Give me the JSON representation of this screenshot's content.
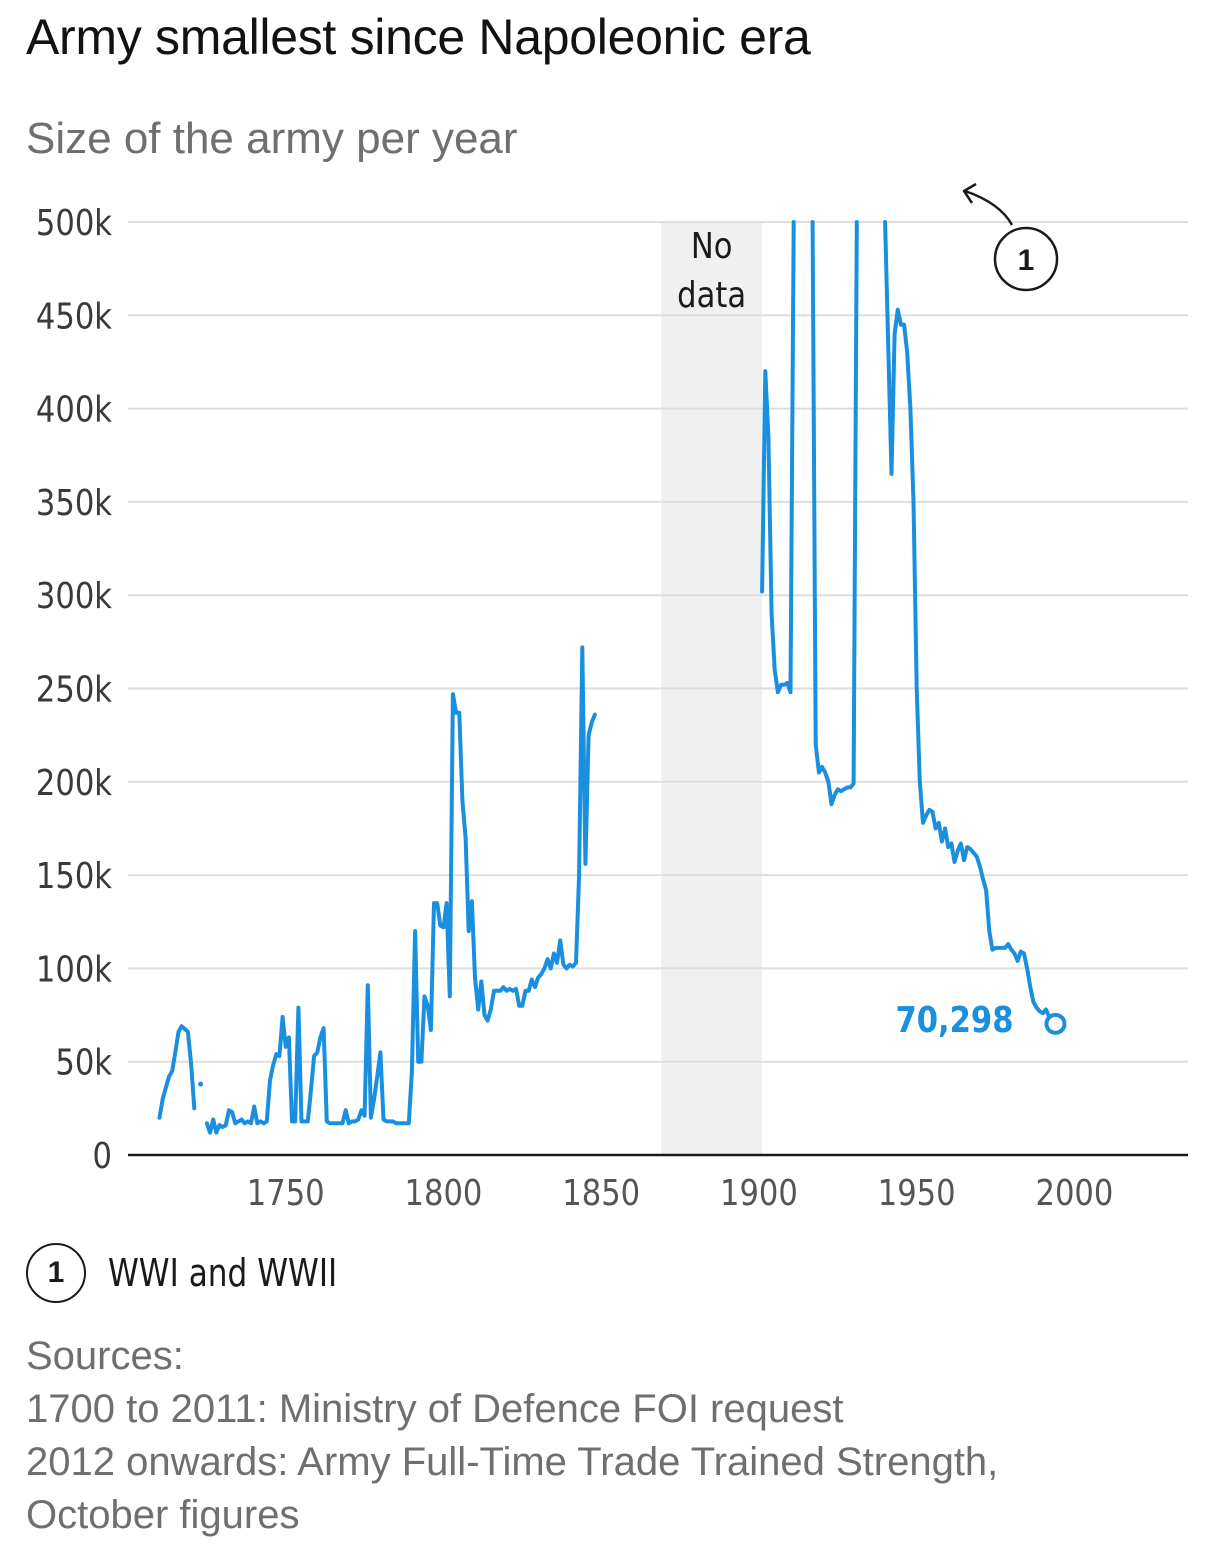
{
  "chart_data": {
    "type": "line",
    "title": "Army smallest since Napoleonic era",
    "subtitle": "Size of the army per year",
    "x_ticks": [
      "1750",
      "1800",
      "1850",
      "1900",
      "1950",
      "2000"
    ],
    "y_ticks": [
      "0",
      "50k",
      "100k",
      "150k",
      "200k",
      "250k",
      "300k",
      "350k",
      "400k",
      "450k",
      "500k"
    ],
    "xlim": [
      1700,
      2036
    ],
    "ylim": [
      0,
      500000
    ],
    "grid": true,
    "series": [
      {
        "color": "#1a8fe0",
        "segments": [
          [
            [
              1710,
              20000
            ],
            [
              1711,
              30000
            ],
            [
              1713,
              42000
            ],
            [
              1714,
              45000
            ],
            [
              1715,
              55000
            ],
            [
              1716,
              66000
            ],
            [
              1717,
              69000
            ],
            [
              1719,
              66000
            ],
            [
              1720,
              49000
            ],
            [
              1721,
              25000
            ]
          ],
          [
            [
              1723,
              38000
            ]
          ],
          [
            [
              1725,
              17000
            ],
            [
              1726,
              12000
            ],
            [
              1727,
              19000
            ],
            [
              1728,
              12000
            ],
            [
              1729,
              16000
            ],
            [
              1730,
              15000
            ],
            [
              1731,
              16000
            ],
            [
              1732,
              24000
            ],
            [
              1733,
              23000
            ],
            [
              1734,
              17000
            ],
            [
              1735,
              18000
            ],
            [
              1736,
              19000
            ],
            [
              1737,
              17000
            ],
            [
              1738,
              18000
            ],
            [
              1739,
              17000
            ],
            [
              1740,
              26000
            ],
            [
              1741,
              17000
            ],
            [
              1742,
              18000
            ],
            [
              1743,
              17000
            ],
            [
              1744,
              18000
            ],
            [
              1745,
              40000
            ],
            [
              1746,
              48000
            ],
            [
              1747,
              54000
            ],
            [
              1748,
              53000
            ],
            [
              1749,
              74000
            ],
            [
              1750,
              58000
            ],
            [
              1751,
              63000
            ],
            [
              1752,
              18000
            ],
            [
              1753,
              18000
            ],
            [
              1754,
              79000
            ],
            [
              1755,
              18000
            ],
            [
              1756,
              18000
            ],
            [
              1757,
              18000
            ],
            [
              1758,
              35000
            ],
            [
              1759,
              53000
            ],
            [
              1760,
              55000
            ],
            [
              1761,
              63000
            ],
            [
              1762,
              68000
            ],
            [
              1763,
              18000
            ],
            [
              1764,
              17000
            ],
            [
              1765,
              17000
            ],
            [
              1766,
              17000
            ],
            [
              1767,
              17000
            ],
            [
              1768,
              17000
            ],
            [
              1769,
              24000
            ],
            [
              1770,
              17000
            ],
            [
              1771,
              18000
            ],
            [
              1772,
              18000
            ],
            [
              1773,
              19000
            ],
            [
              1774,
              24000
            ],
            [
              1775,
              21000
            ],
            [
              1776,
              91000
            ],
            [
              1777,
              20000
            ],
            [
              1778,
              30000
            ],
            [
              1779,
              42000
            ],
            [
              1780,
              55000
            ],
            [
              1781,
              19000
            ],
            [
              1782,
              18000
            ],
            [
              1783,
              18000
            ],
            [
              1784,
              18000
            ],
            [
              1785,
              17000
            ],
            [
              1786,
              17000
            ],
            [
              1787,
              17000
            ],
            [
              1788,
              17000
            ],
            [
              1789,
              17000
            ],
            [
              1790,
              45000
            ],
            [
              1791,
              120000
            ],
            [
              1792,
              50000
            ],
            [
              1793,
              50000
            ],
            [
              1794,
              85000
            ],
            [
              1795,
              80000
            ],
            [
              1796,
              67000
            ],
            [
              1797,
              135000
            ],
            [
              1798,
              135000
            ],
            [
              1799,
              123000
            ],
            [
              1800,
              122000
            ],
            [
              1801,
              135000
            ],
            [
              1802,
              85000
            ],
            [
              1803,
              247000
            ],
            [
              1804,
              237000
            ],
            [
              1805,
              237000
            ],
            [
              1806,
              190000
            ],
            [
              1807,
              170000
            ],
            [
              1808,
              120000
            ],
            [
              1809,
              136000
            ],
            [
              1810,
              95000
            ],
            [
              1811,
              78000
            ],
            [
              1812,
              93000
            ],
            [
              1813,
              75000
            ],
            [
              1814,
              72000
            ],
            [
              1815,
              78000
            ],
            [
              1816,
              88000
            ],
            [
              1817,
              88000
            ],
            [
              1818,
              88000
            ],
            [
              1819,
              90000
            ],
            [
              1820,
              88000
            ],
            [
              1821,
              89000
            ],
            [
              1822,
              88000
            ],
            [
              1823,
              89000
            ],
            [
              1824,
              80000
            ],
            [
              1825,
              80000
            ],
            [
              1826,
              88000
            ],
            [
              1827,
              88000
            ],
            [
              1828,
              94000
            ],
            [
              1829,
              90000
            ],
            [
              1830,
              95000
            ],
            [
              1831,
              97000
            ],
            [
              1832,
              100000
            ],
            [
              1833,
              105000
            ],
            [
              1834,
              100000
            ],
            [
              1835,
              108000
            ],
            [
              1836,
              103000
            ],
            [
              1837,
              115000
            ],
            [
              1838,
              102000
            ],
            [
              1839,
              100000
            ],
            [
              1840,
              102000
            ],
            [
              1841,
              101000
            ],
            [
              1842,
              103000
            ],
            [
              1843,
              150000
            ],
            [
              1844,
              272000
            ],
            [
              1845,
              156000
            ],
            [
              1846,
              225000
            ],
            [
              1847,
              232000
            ],
            [
              1848,
              236000
            ]
          ],
          [
            [
              1901,
              302000
            ],
            [
              1902,
              420000
            ],
            [
              1903,
              385000
            ],
            [
              1904,
              290000
            ],
            [
              1905,
              260000
            ],
            [
              1906,
              248000
            ],
            [
              1907,
              252000
            ],
            [
              1908,
              252000
            ],
            [
              1909,
              253000
            ],
            [
              1910,
              248000
            ],
            [
              1911,
              500000
            ]
          ],
          [
            [
              1917,
              500000
            ],
            [
              1918,
              220000
            ],
            [
              1919,
              205000
            ],
            [
              1920,
              208000
            ],
            [
              1921,
              205000
            ],
            [
              1922,
              200000
            ],
            [
              1923,
              188000
            ],
            [
              1924,
              193000
            ],
            [
              1925,
              196000
            ],
            [
              1926,
              195000
            ],
            [
              1927,
              196000
            ],
            [
              1928,
              197000
            ],
            [
              1929,
              197000
            ],
            [
              1930,
              199000
            ],
            [
              1931,
              500000
            ]
          ],
          [
            [
              1940,
              500000
            ],
            [
              1942,
              365000
            ],
            [
              1943,
              440000
            ],
            [
              1944,
              453000
            ],
            [
              1945,
              445000
            ],
            [
              1946,
              445000
            ],
            [
              1947,
              430000
            ],
            [
              1948,
              400000
            ],
            [
              1949,
              350000
            ],
            [
              1950,
              250000
            ],
            [
              1951,
              200000
            ],
            [
              1952,
              178000
            ],
            [
              1953,
              182000
            ],
            [
              1954,
              185000
            ],
            [
              1955,
              184000
            ],
            [
              1956,
              175000
            ],
            [
              1957,
              178000
            ],
            [
              1958,
              168000
            ],
            [
              1959,
              175000
            ],
            [
              1960,
              165000
            ],
            [
              1961,
              167000
            ],
            [
              1962,
              157000
            ],
            [
              1963,
              163000
            ],
            [
              1964,
              167000
            ],
            [
              1965,
              158000
            ],
            [
              1966,
              165000
            ],
            [
              1967,
              164000
            ],
            [
              1968,
              162000
            ],
            [
              1969,
              160000
            ],
            [
              1970,
              155000
            ],
            [
              1971,
              148000
            ],
            [
              1972,
              142000
            ],
            [
              1973,
              120000
            ],
            [
              1974,
              110000
            ],
            [
              1975,
              111000
            ],
            [
              1976,
              111000
            ],
            [
              1977,
              111000
            ],
            [
              1978,
              111000
            ],
            [
              1979,
              113000
            ],
            [
              1980,
              110000
            ],
            [
              1981,
              108000
            ],
            [
              1982,
              104000
            ],
            [
              1983,
              109000
            ],
            [
              1984,
              108000
            ],
            [
              1985,
              100000
            ],
            [
              1986,
              90000
            ],
            [
              1987,
              82000
            ],
            [
              1988,
              79000
            ],
            [
              1989,
              77000
            ],
            [
              1990,
              76000
            ],
            [
              1991,
              78000
            ],
            [
              1992,
              74000
            ],
            [
              1993,
              72000
            ],
            [
              1994,
              70298
            ]
          ]
        ]
      }
    ],
    "shaded_regions": [
      {
        "from": 1869,
        "to": 1901,
        "label_lines": [
          "No",
          "data"
        ]
      }
    ],
    "annotations": [
      {
        "marker": "1",
        "text": "WWI and WWII"
      }
    ],
    "end_label": "70,298"
  },
  "sources": {
    "heading": "Sources:",
    "lines": [
      "1700 to 2011: Ministry of Defence FOI request",
      "2012 onwards: Army Full-Time Trade Trained Strength,",
      "October figures"
    ]
  }
}
